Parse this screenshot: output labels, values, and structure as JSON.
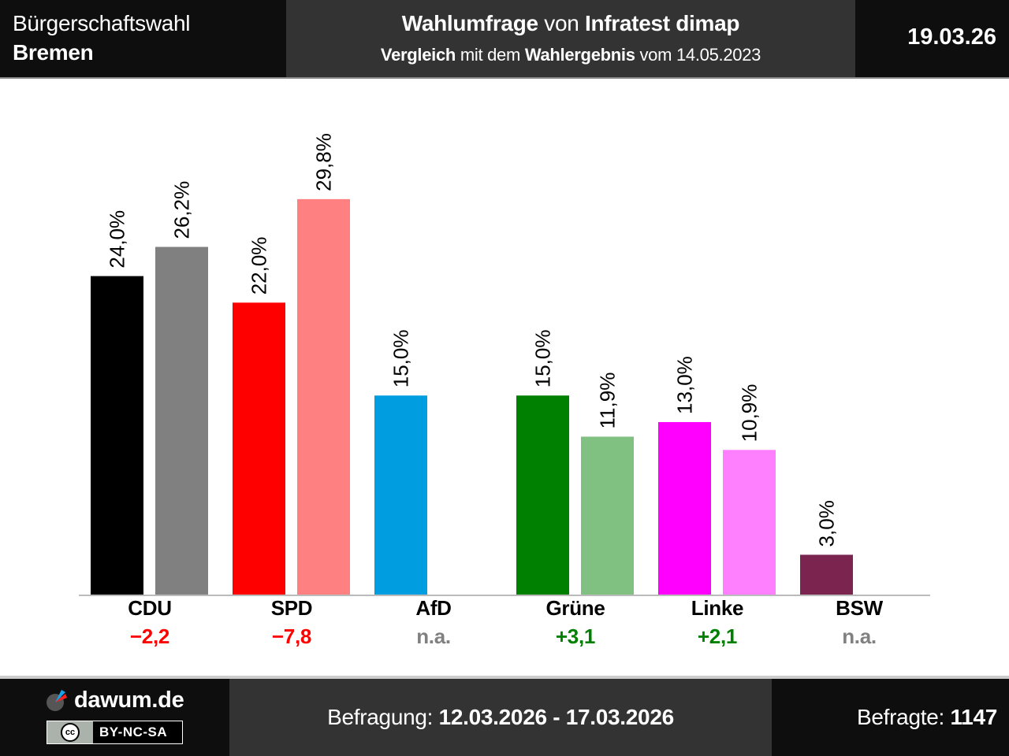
{
  "header": {
    "election_type": "Bürgerschaftswahl",
    "region": "Bremen",
    "title_bold1": "Wahlumfrage",
    "title_mid": " von ",
    "title_bold2": "Infratest dimap",
    "subtitle_bold1": "Vergleich",
    "subtitle_mid": " mit dem ",
    "subtitle_bold2": "Wahlergebnis",
    "subtitle_tail": " vom 14.05.2023",
    "date": "19.03.26"
  },
  "chart_data": {
    "type": "bar",
    "title": "Wahlumfrage von Infratest dimap – Bürgerschaftswahl Bremen",
    "subtitle": "Vergleich mit dem Wahlergebnis vom 14.05.2023",
    "xlabel": "",
    "ylabel": "",
    "ylim": [
      0,
      30
    ],
    "grid": false,
    "value_format": "comma-decimal-percent",
    "categories": [
      "CDU",
      "SPD",
      "AfD",
      "Grüne",
      "Linke",
      "BSW"
    ],
    "series": [
      {
        "name": "Umfrage",
        "values": [
          24.0,
          22.0,
          15.0,
          15.0,
          13.0,
          3.0
        ],
        "labels": [
          "24,0%",
          "22,0%",
          "15,0%",
          "15,0%",
          "13,0%",
          "3,0%"
        ],
        "colors": [
          "#000000",
          "#ff0000",
          "#009ee0",
          "#008000",
          "#ff00ff",
          "#7b2450"
        ]
      },
      {
        "name": "Wahlergebnis 14.05.2023",
        "values": [
          26.2,
          29.8,
          null,
          11.9,
          10.9,
          null
        ],
        "labels": [
          "26,2%",
          "29,8%",
          null,
          "11,9%",
          "10,9%",
          null
        ],
        "colors": [
          "#808080",
          "#ff8080",
          null,
          "#80c080",
          "#ff80ff",
          null
        ]
      }
    ],
    "differences": [
      {
        "party": "CDU",
        "text": "−2,2",
        "color": "#ff0000"
      },
      {
        "party": "SPD",
        "text": "−7,8",
        "color": "#ff0000"
      },
      {
        "party": "AfD",
        "text": "n.a.",
        "color": "#808080"
      },
      {
        "party": "Grüne",
        "text": "+3,1",
        "color": "#008000"
      },
      {
        "party": "Linke",
        "text": "+2,1",
        "color": "#008000"
      },
      {
        "party": "BSW",
        "text": "n.a.",
        "color": "#808080"
      }
    ]
  },
  "footer": {
    "brand": "dawum.de",
    "license_icon": "cc-icon",
    "license": "BY-NC-SA",
    "period_label": "Befragung: ",
    "period_value": "12.03.2026 - 17.03.2026",
    "respondents_label": "Befragte: ",
    "respondents_value": "1147"
  }
}
